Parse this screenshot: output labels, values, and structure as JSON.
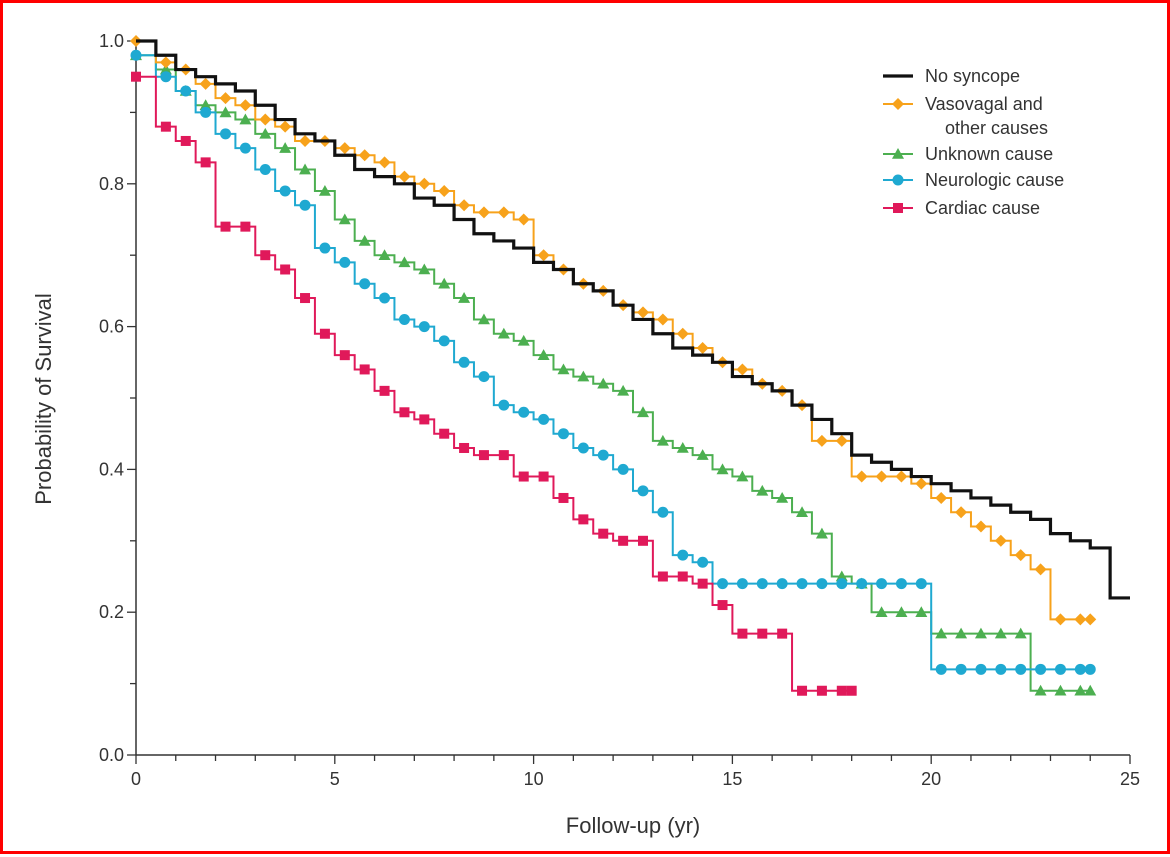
{
  "chart_data": {
    "type": "line",
    "title": "",
    "xlabel": "Follow-up (yr)",
    "ylabel": "Probability of Survival",
    "xlim": [
      0,
      25
    ],
    "ylim": [
      0,
      1.0
    ],
    "x_ticks": [
      "0",
      "5",
      "10",
      "15",
      "20",
      "25"
    ],
    "y_ticks": [
      "0.0",
      "0.2",
      "0.4",
      "0.6",
      "0.8",
      "1.0"
    ],
    "grid": false,
    "legend_position": "top-right",
    "step": true,
    "series": [
      {
        "name": "No syncope",
        "color": "#111111",
        "marker": "none",
        "x": [
          0,
          0.5,
          1,
          1.5,
          2,
          2.5,
          3,
          3.5,
          4,
          4.5,
          5,
          5.5,
          6,
          6.5,
          7,
          7.5,
          8,
          8.5,
          9,
          9.5,
          10,
          10.5,
          11,
          11.5,
          12,
          12.5,
          13,
          13.5,
          14,
          14.5,
          15,
          15.5,
          16,
          16.5,
          17,
          17.5,
          18,
          18.5,
          19,
          19.5,
          20,
          20.5,
          21,
          21.5,
          22,
          22.5,
          23,
          23.5,
          24,
          24.5,
          25
        ],
        "y": [
          1.0,
          0.98,
          0.96,
          0.95,
          0.94,
          0.93,
          0.91,
          0.89,
          0.87,
          0.86,
          0.84,
          0.82,
          0.81,
          0.8,
          0.78,
          0.77,
          0.75,
          0.73,
          0.72,
          0.71,
          0.69,
          0.68,
          0.66,
          0.65,
          0.63,
          0.61,
          0.59,
          0.57,
          0.56,
          0.55,
          0.53,
          0.52,
          0.51,
          0.49,
          0.47,
          0.45,
          0.42,
          0.41,
          0.4,
          0.39,
          0.38,
          0.37,
          0.36,
          0.35,
          0.34,
          0.33,
          0.31,
          0.3,
          0.29,
          0.22,
          0.22
        ]
      },
      {
        "name": "Vasovagal and other causes",
        "color": "#f7a21b",
        "marker": "diamond",
        "x": [
          0,
          0.5,
          1,
          1.5,
          2,
          2.5,
          3,
          3.5,
          4,
          4.5,
          5,
          5.5,
          6,
          6.5,
          7,
          7.5,
          8,
          8.5,
          9,
          9.5,
          10,
          10.5,
          11,
          11.5,
          12,
          12.5,
          13,
          13.5,
          14,
          14.5,
          15,
          15.5,
          16,
          16.5,
          17,
          17.5,
          18,
          18.5,
          19,
          19.5,
          20,
          20.5,
          21,
          21.5,
          22,
          22.5,
          23,
          23.5,
          24
        ],
        "y": [
          1.0,
          0.97,
          0.96,
          0.94,
          0.92,
          0.91,
          0.89,
          0.88,
          0.86,
          0.86,
          0.85,
          0.84,
          0.83,
          0.81,
          0.8,
          0.79,
          0.77,
          0.76,
          0.76,
          0.75,
          0.7,
          0.68,
          0.66,
          0.65,
          0.63,
          0.62,
          0.61,
          0.59,
          0.57,
          0.55,
          0.54,
          0.52,
          0.51,
          0.49,
          0.44,
          0.44,
          0.39,
          0.39,
          0.39,
          0.38,
          0.36,
          0.34,
          0.32,
          0.3,
          0.28,
          0.26,
          0.19,
          0.19,
          0.19
        ]
      },
      {
        "name": "Unknown cause",
        "color": "#4caf50",
        "marker": "triangle",
        "x": [
          0,
          0.5,
          1,
          1.5,
          2,
          2.5,
          3,
          3.5,
          4,
          4.5,
          5,
          5.5,
          6,
          6.5,
          7,
          7.5,
          8,
          8.5,
          9,
          9.5,
          10,
          10.5,
          11,
          11.5,
          12,
          12.5,
          13,
          13.5,
          14,
          14.5,
          15,
          15.5,
          16,
          16.5,
          17,
          17.5,
          18,
          18.5,
          19,
          19.5,
          20,
          20.5,
          21,
          21.5,
          22,
          22.5,
          23,
          23.5,
          24
        ],
        "y": [
          0.98,
          0.96,
          0.93,
          0.91,
          0.9,
          0.89,
          0.87,
          0.85,
          0.82,
          0.79,
          0.75,
          0.72,
          0.7,
          0.69,
          0.68,
          0.66,
          0.64,
          0.61,
          0.59,
          0.58,
          0.56,
          0.54,
          0.53,
          0.52,
          0.51,
          0.48,
          0.44,
          0.43,
          0.42,
          0.4,
          0.39,
          0.37,
          0.36,
          0.34,
          0.31,
          0.25,
          0.24,
          0.2,
          0.2,
          0.2,
          0.17,
          0.17,
          0.17,
          0.17,
          0.17,
          0.09,
          0.09,
          0.09,
          0.09
        ]
      },
      {
        "name": "Neurologic cause",
        "color": "#1fa9d1",
        "marker": "circle",
        "x": [
          0,
          0.5,
          1,
          1.5,
          2,
          2.5,
          3,
          3.5,
          4,
          4.5,
          5,
          5.5,
          6,
          6.5,
          7,
          7.5,
          8,
          8.5,
          9,
          9.5,
          10,
          10.5,
          11,
          11.5,
          12,
          12.5,
          13,
          13.5,
          14,
          14.5,
          15,
          15.5,
          16,
          16.5,
          17,
          17.5,
          18,
          18.5,
          19,
          19.5,
          20,
          20.5,
          21,
          21.5,
          22,
          22.5,
          23,
          23.5,
          24
        ],
        "y": [
          0.98,
          0.95,
          0.93,
          0.9,
          0.87,
          0.85,
          0.82,
          0.79,
          0.77,
          0.71,
          0.69,
          0.66,
          0.64,
          0.61,
          0.6,
          0.58,
          0.55,
          0.53,
          0.49,
          0.48,
          0.47,
          0.45,
          0.43,
          0.42,
          0.4,
          0.37,
          0.34,
          0.28,
          0.27,
          0.24,
          0.24,
          0.24,
          0.24,
          0.24,
          0.24,
          0.24,
          0.24,
          0.24,
          0.24,
          0.24,
          0.12,
          0.12,
          0.12,
          0.12,
          0.12,
          0.12,
          0.12,
          0.12,
          0.12
        ]
      },
      {
        "name": "Cardiac cause",
        "color": "#e0195a",
        "marker": "square",
        "x": [
          0,
          0.5,
          1,
          1.5,
          2,
          2.5,
          3,
          3.5,
          4,
          4.5,
          5,
          5.5,
          6,
          6.5,
          7,
          7.5,
          8,
          8.5,
          9,
          9.5,
          10,
          10.5,
          11,
          11.5,
          12,
          12.5,
          13,
          13.5,
          14,
          14.5,
          15,
          15.5,
          16,
          16.5,
          17,
          17.5,
          18
        ],
        "y": [
          0.95,
          0.88,
          0.86,
          0.83,
          0.74,
          0.74,
          0.7,
          0.68,
          0.64,
          0.59,
          0.56,
          0.54,
          0.51,
          0.48,
          0.47,
          0.45,
          0.43,
          0.42,
          0.42,
          0.39,
          0.39,
          0.36,
          0.33,
          0.31,
          0.3,
          0.3,
          0.25,
          0.25,
          0.24,
          0.21,
          0.17,
          0.17,
          0.17,
          0.09,
          0.09,
          0.09,
          0.09
        ]
      }
    ],
    "legend_lines": [
      [
        "No syncope"
      ],
      [
        "Vasovagal and",
        "other causes"
      ],
      [
        "Unknown cause"
      ],
      [
        "Neurologic cause"
      ],
      [
        "Cardiac cause"
      ]
    ]
  }
}
